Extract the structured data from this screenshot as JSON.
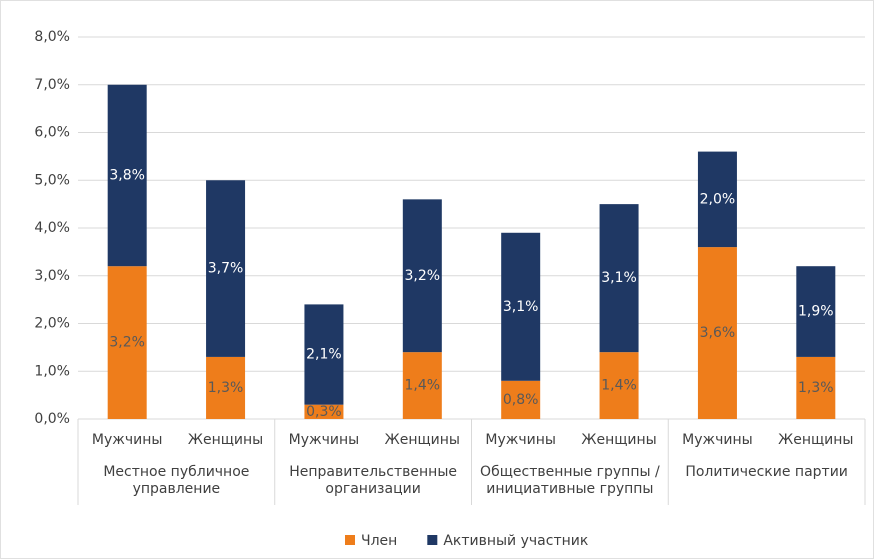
{
  "chart_data": {
    "type": "stacked_bar",
    "categories": [
      "Мужчины",
      "Женщины",
      "Мужчины",
      "Женщины",
      "Мужчины",
      "Женщины",
      "Мужчины",
      "Женщины"
    ],
    "groups": [
      "Местное публичное управление",
      "Неправительственные организации",
      "Общественные группы / инициативные группы",
      "Политические партии"
    ],
    "series": [
      {
        "name": "Член",
        "color": "#ee7d1b",
        "values": [
          3.2,
          1.3,
          0.3,
          1.4,
          0.8,
          1.4,
          3.6,
          1.3
        ],
        "value_labels": [
          "3,2%",
          "1,3%",
          "0,3%",
          "1,4%",
          "0,8%",
          "1,4%",
          "3,6%",
          "1,3%"
        ]
      },
      {
        "name": "Активный участник",
        "color": "#1f3864",
        "values": [
          3.8,
          3.7,
          2.1,
          3.2,
          3.1,
          3.1,
          2.0,
          1.9
        ],
        "value_labels": [
          "3,8%",
          "3,7%",
          "2,1%",
          "3,2%",
          "3,1%",
          "3,1%",
          "2,0%",
          "1,9%"
        ]
      }
    ],
    "ylim": [
      0,
      8
    ],
    "yticks": [
      {
        "value": 0,
        "label": "0,0%"
      },
      {
        "value": 1,
        "label": "1,0%"
      },
      {
        "value": 2,
        "label": "2,0%"
      },
      {
        "value": 3,
        "label": "3,0%"
      },
      {
        "value": 4,
        "label": "4,0%"
      },
      {
        "value": 5,
        "label": "5,0%"
      },
      {
        "value": 6,
        "label": "6,0%"
      },
      {
        "value": 7,
        "label": "7,0%"
      },
      {
        "value": 8,
        "label": "8,0%"
      }
    ],
    "grid": true,
    "legend": "bottom"
  }
}
